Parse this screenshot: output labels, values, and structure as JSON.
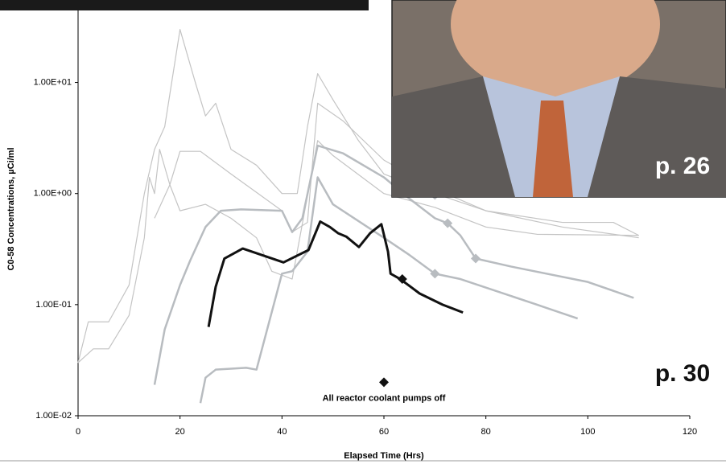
{
  "chart_data": {
    "type": "line",
    "ylabel": "C0-58 Concentrations, µCi/ml",
    "xlabel": "Elapsed Time (Hrs)",
    "log_y": true,
    "xlim": [
      0,
      120
    ],
    "xticks": [
      0,
      20,
      40,
      60,
      80,
      100,
      120
    ],
    "ylim": [
      0.01,
      50
    ],
    "yticks": [
      {
        "value": 0.01,
        "label": "1.00E-02"
      },
      {
        "value": 0.1,
        "label": "1.00E-01"
      },
      {
        "value": 1,
        "label": "1.00E+00"
      },
      {
        "value": 10,
        "label": "1.00E+01"
      }
    ],
    "series": [
      {
        "color": "#c4c4c4",
        "width": 1.2,
        "x": [
          0,
          2,
          6,
          10,
          13,
          15,
          17,
          20,
          23,
          25,
          27,
          30,
          35,
          40,
          43,
          45,
          47,
          50,
          55,
          60,
          70,
          80,
          95,
          105,
          110
        ],
        "values": [
          0.03,
          0.07,
          0.07,
          0.15,
          1.0,
          2.5,
          4,
          30,
          10,
          5,
          6.5,
          2.5,
          1.8,
          1.0,
          1.0,
          4,
          12,
          7,
          3,
          1.5,
          1.0,
          0.7,
          0.55,
          0.55,
          0.42
        ]
      },
      {
        "color": "#c4c4c4",
        "width": 1.2,
        "x": [
          0,
          3,
          6,
          10,
          13,
          14,
          15,
          16,
          18,
          20,
          24,
          30,
          40,
          42,
          45,
          47,
          52,
          60,
          70,
          80,
          95,
          110
        ],
        "values": [
          0.03,
          0.04,
          0.04,
          0.08,
          0.4,
          1.4,
          1.0,
          2.5,
          1.2,
          2.4,
          2.4,
          1.5,
          0.7,
          0.45,
          0.55,
          6.5,
          4.5,
          2.0,
          1.1,
          0.7,
          0.5,
          0.4
        ]
      },
      {
        "color": "#c4c4c4",
        "width": 1.2,
        "x": [
          15,
          18,
          20,
          25,
          30,
          35,
          38,
          42,
          47,
          50,
          60,
          70,
          80,
          90,
          110
        ],
        "values": [
          0.6,
          1.2,
          0.7,
          0.8,
          0.6,
          0.4,
          0.2,
          0.17,
          3,
          2.2,
          1.0,
          0.75,
          0.5,
          0.43,
          0.42
        ]
      },
      {
        "color": "#b8bcc0",
        "width": 2.5,
        "x": [
          15,
          17,
          20,
          22,
          25,
          28,
          32,
          40,
          42,
          44,
          47,
          52,
          60,
          65,
          70,
          72.5,
          75,
          78,
          85,
          100,
          109
        ],
        "values": [
          0.019,
          0.06,
          0.15,
          0.25,
          0.5,
          0.7,
          0.72,
          0.7,
          0.45,
          0.6,
          2.7,
          2.3,
          1.4,
          0.9,
          0.6,
          0.54,
          0.42,
          0.26,
          0.22,
          0.16,
          0.115
        ]
      },
      {
        "color": "#b8bcc0",
        "width": 2.5,
        "x": [
          24,
          25,
          27,
          33,
          35,
          40,
          42,
          45,
          47,
          50,
          60,
          65,
          70,
          75,
          90,
          98
        ],
        "values": [
          0.013,
          0.022,
          0.026,
          0.027,
          0.026,
          0.19,
          0.2,
          0.3,
          1.4,
          0.8,
          0.4,
          0.28,
          0.19,
          0.17,
          0.1,
          0.075
        ]
      },
      {
        "color": "#111111",
        "width": 3,
        "x": [
          25.6,
          27,
          28.7,
          32.3,
          40.3,
          45.2,
          47.5,
          49.4,
          51,
          52.6,
          55.1,
          57.3,
          59.5,
          60.8,
          61.3,
          63.2,
          67,
          71.5,
          75.5
        ],
        "values": [
          0.063,
          0.145,
          0.26,
          0.32,
          0.24,
          0.31,
          0.56,
          0.5,
          0.44,
          0.41,
          0.33,
          0.44,
          0.53,
          0.3,
          0.19,
          0.17,
          0.126,
          0.1,
          0.085
        ]
      }
    ],
    "markers": [
      {
        "x": 63.6,
        "y": 0.17,
        "color": "#111111"
      },
      {
        "x": 72.5,
        "y": 0.54,
        "color": "#b8bcc0"
      },
      {
        "x": 78,
        "y": 0.26,
        "color": "#b8bcc0"
      },
      {
        "x": 70,
        "y": 0.19,
        "color": "#b8bcc0"
      },
      {
        "x": 70,
        "y": 0.97,
        "color": "#b8bcc0"
      }
    ],
    "annotations": [
      {
        "text": "All reactor coolant pumps off",
        "x": 60,
        "y": 0.02
      }
    ]
  },
  "page_labels": [
    "p. 26",
    "p. 30"
  ]
}
